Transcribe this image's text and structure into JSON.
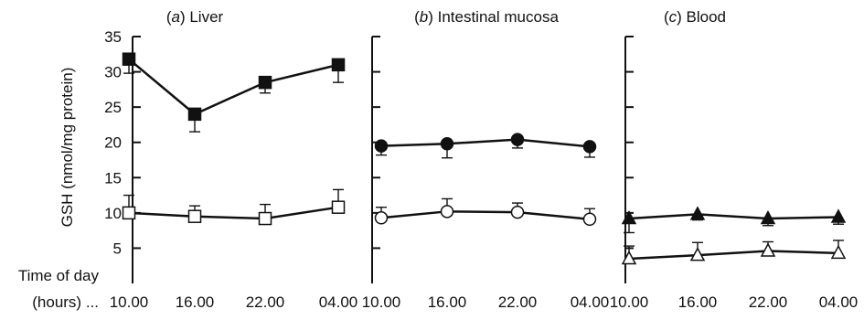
{
  "chart_data": {
    "type": "line",
    "ylabel": "GSH (nmol/mg protein)",
    "x_axis_caption": [
      "Time of day",
      "(hours) ..."
    ],
    "categories": [
      "10.00",
      "16.00",
      "22.00",
      "04.00"
    ],
    "ylim": [
      0,
      35
    ],
    "yticks": [
      5,
      10,
      15,
      20,
      25,
      30,
      35
    ],
    "colors": {
      "ink": "#111111",
      "hollow_fill": "#ffffff"
    },
    "panels": [
      {
        "title_prefix": "(",
        "title_letter": "a",
        "title_suffix": ")  Liver",
        "series": [
          {
            "marker": "filled-square",
            "values": [
              31.8,
              24.0,
              28.5,
              31.0
            ],
            "error": [
              2.0,
              2.5,
              1.5,
              2.5
            ]
          },
          {
            "marker": "open-square",
            "values": [
              10.0,
              9.5,
              9.2,
              10.8
            ],
            "error": [
              2.5,
              1.5,
              2.0,
              2.5
            ]
          }
        ]
      },
      {
        "title_prefix": "(",
        "title_letter": "b",
        "title_suffix": ")  Intestinal mucosa",
        "series": [
          {
            "marker": "filled-circle",
            "values": [
              19.5,
              19.8,
              20.4,
              19.4
            ],
            "error": [
              1.3,
              2.0,
              1.2,
              1.5
            ]
          },
          {
            "marker": "open-circle",
            "values": [
              9.3,
              10.2,
              10.1,
              9.1
            ],
            "error": [
              1.5,
              1.8,
              1.3,
              1.5
            ]
          }
        ]
      },
      {
        "title_prefix": "(",
        "title_letter": "c",
        "title_suffix": ")  Blood",
        "series": [
          {
            "marker": "filled-triangle",
            "values": [
              9.2,
              9.8,
              9.2,
              9.4
            ],
            "error": [
              2.0,
              0.8,
              1.0,
              1.0
            ]
          },
          {
            "marker": "open-triangle",
            "values": [
              3.5,
              4.0,
              4.6,
              4.3
            ],
            "error": [
              1.8,
              1.8,
              1.3,
              1.8
            ]
          }
        ]
      }
    ]
  }
}
